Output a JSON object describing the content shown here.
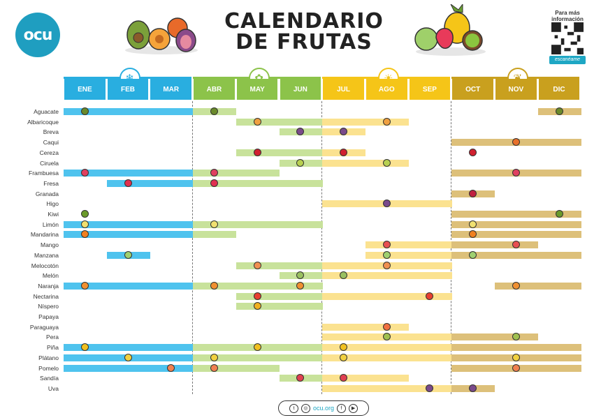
{
  "header": {
    "logo": "ocu",
    "title_line1": "CALENDARIO",
    "title_line2": "DE FRUTAS",
    "qr_label": "Para más información",
    "qr_badge": "escanéame"
  },
  "months": [
    "ENE",
    "FEB",
    "MAR",
    "ABR",
    "MAY",
    "JUN",
    "JUL",
    "AGO",
    "SEP",
    "OCT",
    "NOV",
    "DIC"
  ],
  "season_colors": {
    "winter": {
      "header": "#29aee0",
      "bar": "#4fc3ee"
    },
    "spring": {
      "header": "#8cc34a",
      "bar": "#c8e29b"
    },
    "summer": {
      "header": "#f5c518",
      "bar": "#fbe290"
    },
    "autumn": {
      "header": "#c9a01e",
      "bar": "#ddc07a"
    }
  },
  "season_icons": [
    "snowflake-icon",
    "sun-flower-icon",
    "sun-icon",
    "leaf-icon"
  ],
  "fruits": [
    {
      "name": "Aguacate",
      "ranges": [
        [
          1,
          4
        ],
        [
          12,
          12
        ]
      ],
      "icon_color": "#6a8a2a",
      "icons": [
        1,
        4,
        12
      ]
    },
    {
      "name": "Albaricoque",
      "ranges": [
        [
          5,
          8
        ]
      ],
      "icon_color": "#f0a040",
      "icons": [
        5,
        8
      ]
    },
    {
      "name": "Breva",
      "ranges": [
        [
          6,
          7
        ]
      ],
      "icon_color": "#7a4a8a",
      "icons": [
        6,
        7
      ]
    },
    {
      "name": "Caqui",
      "ranges": [
        [
          10,
          12
        ]
      ],
      "icon_color": "#e8702a",
      "icons": [
        11
      ]
    },
    {
      "name": "Cereza",
      "ranges": [
        [
          5,
          7
        ]
      ],
      "icon_color": "#d02030",
      "icons": [
        5,
        7,
        10
      ]
    },
    {
      "name": "Ciruela",
      "ranges": [
        [
          6,
          8
        ]
      ],
      "icon_color": "#b8d050",
      "icons": [
        6,
        8
      ]
    },
    {
      "name": "Frambuesa",
      "ranges": [
        [
          1,
          5
        ],
        [
          10,
          12
        ]
      ],
      "icon_color": "#e04060",
      "icons": [
        1,
        4,
        11
      ]
    },
    {
      "name": "Fresa",
      "ranges": [
        [
          2,
          6
        ]
      ],
      "icon_color": "#e03050",
      "icons": [
        2,
        4
      ]
    },
    {
      "name": "Granada",
      "ranges": [
        [
          10,
          10
        ]
      ],
      "icon_color": "#c02040",
      "icons": [
        10
      ]
    },
    {
      "name": "Higo",
      "ranges": [
        [
          7,
          9
        ]
      ],
      "icon_color": "#7a4a8a",
      "icons": [
        8
      ]
    },
    {
      "name": "Kiwi",
      "ranges": [
        [
          10,
          12
        ]
      ],
      "icon_color": "#6a9a2a",
      "icons": [
        1,
        12
      ]
    },
    {
      "name": "Limón",
      "ranges": [
        [
          1,
          6
        ],
        [
          10,
          12
        ]
      ],
      "icon_color": "#f0e070",
      "icons": [
        1,
        4,
        10
      ]
    },
    {
      "name": "Mandarina",
      "ranges": [
        [
          1,
          4
        ],
        [
          10,
          12
        ]
      ],
      "icon_color": "#f08020",
      "icons": [
        1,
        10
      ]
    },
    {
      "name": "Mango",
      "ranges": [
        [
          8,
          11
        ]
      ],
      "icon_color": "#e85050",
      "icons": [
        8,
        11
      ]
    },
    {
      "name": "Manzana",
      "ranges": [
        [
          2,
          2
        ],
        [
          8,
          12
        ]
      ],
      "icon_color": "#a0d070",
      "icons": [
        2,
        8,
        10
      ]
    },
    {
      "name": "Melocotón",
      "ranges": [
        [
          5,
          9
        ]
      ],
      "icon_color": "#f09050",
      "icons": [
        5,
        8
      ]
    },
    {
      "name": "Melón",
      "ranges": [
        [
          6,
          9
        ]
      ],
      "icon_color": "#9ac060",
      "icons": [
        6,
        7
      ]
    },
    {
      "name": "Naranja",
      "ranges": [
        [
          1,
          5
        ],
        [
          6,
          6
        ],
        [
          11,
          12
        ]
      ],
      "icon_color": "#f09030",
      "icons": [
        1,
        4,
        6,
        11
      ]
    },
    {
      "name": "Nectarina",
      "ranges": [
        [
          5,
          9
        ]
      ],
      "icon_color": "#e84030",
      "icons": [
        5,
        9
      ]
    },
    {
      "name": "Níspero",
      "ranges": [
        [
          5,
          6
        ]
      ],
      "icon_color": "#f0b020",
      "icons": [
        5
      ]
    },
    {
      "name": "Papaya",
      "ranges": [],
      "icon_color": "#f09050",
      "icons": []
    },
    {
      "name": "Paraguaya",
      "ranges": [
        [
          7,
          8
        ]
      ],
      "icon_color": "#f07040",
      "icons": [
        8
      ]
    },
    {
      "name": "Pera",
      "ranges": [
        [
          7,
          11
        ]
      ],
      "icon_color": "#a0c050",
      "icons": [
        8,
        11
      ]
    },
    {
      "name": "Piña",
      "ranges": [
        [
          1,
          12
        ]
      ],
      "icon_color": "#f0c020",
      "icons": [
        1,
        5,
        7
      ]
    },
    {
      "name": "Plátano",
      "ranges": [
        [
          1,
          12
        ]
      ],
      "icon_color": "#f0d040",
      "icons": [
        2,
        4,
        7,
        11
      ]
    },
    {
      "name": "Pomelo",
      "ranges": [
        [
          1,
          5
        ],
        [
          10,
          12
        ]
      ],
      "icon_color": "#f08050",
      "icons": [
        3,
        4,
        11
      ]
    },
    {
      "name": "Sandía",
      "ranges": [
        [
          6,
          8
        ]
      ],
      "icon_color": "#e04050",
      "icons": [
        6,
        7
      ]
    },
    {
      "name": "Uva",
      "ranges": [
        [
          7,
          10
        ]
      ],
      "icon_color": "#7a4a8a",
      "icons": [
        9,
        10
      ]
    }
  ],
  "footer": {
    "url": "ocu.org"
  }
}
